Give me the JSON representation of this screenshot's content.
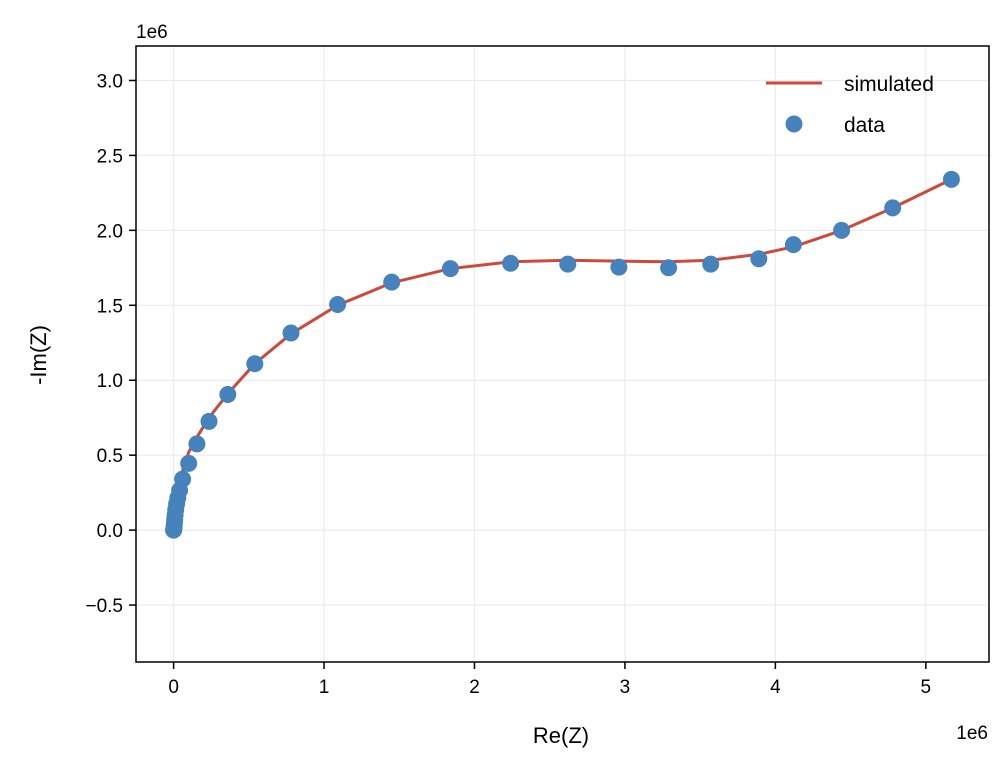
{
  "chart_data": {
    "type": "scatter",
    "title": "",
    "xlabel": "Re(Z)",
    "ylabel": "-Im(Z)",
    "x_offset_label": "1e6",
    "y_offset_label": "1e6",
    "xlim": [
      -250000,
      5420000
    ],
    "ylim": [
      -880000,
      3230000
    ],
    "x_ticks": [
      0,
      1000000,
      2000000,
      3000000,
      4000000,
      5000000
    ],
    "x_tick_labels": [
      "0",
      "1",
      "2",
      "3",
      "4",
      "5"
    ],
    "y_ticks": [
      -500000,
      0,
      500000,
      1000000,
      1500000,
      2000000,
      2500000,
      3000000
    ],
    "y_tick_labels": [
      "−0.5",
      "0.0",
      "0.5",
      "1.0",
      "1.5",
      "2.0",
      "2.5",
      "3.0"
    ],
    "grid": true,
    "legend_position": "top-right",
    "series": [
      {
        "name": "simulated",
        "kind": "line",
        "color": "#cc4a3c",
        "x": [
          0,
          1000,
          3000,
          6000,
          10000,
          15000,
          20000,
          30000,
          45000,
          65000,
          100000,
          155000,
          235000,
          360000,
          540000,
          780000,
          1090000,
          1450000,
          1840000,
          2240000,
          2620000,
          2960000,
          3290000,
          3570000,
          3890000,
          4120000,
          4440000,
          4780000,
          5170000
        ],
        "y": [
          0,
          15000,
          35000,
          70000,
          110000,
          150000,
          185000,
          245000,
          330000,
          420000,
          520000,
          620000,
          750000,
          910000,
          1110000,
          1310000,
          1500000,
          1650000,
          1745000,
          1790000,
          1800000,
          1795000,
          1790000,
          1800000,
          1840000,
          1890000,
          2000000,
          2150000,
          2340000
        ]
      },
      {
        "name": "data",
        "kind": "marker",
        "color": "#4682bc",
        "x": [
          0,
          1000,
          2000,
          3000,
          5000,
          7000,
          10000,
          14000,
          20000,
          28000,
          40000,
          60000,
          100000,
          155000,
          235000,
          360000,
          540000,
          780000,
          1090000,
          1450000,
          1840000,
          2240000,
          2620000,
          2960000,
          3290000,
          3570000,
          3890000,
          4120000,
          4440000,
          4780000,
          5170000
        ],
        "y": [
          0,
          5000,
          12000,
          25000,
          45000,
          70000,
          100000,
          135000,
          175000,
          215000,
          265000,
          340000,
          445000,
          575000,
          725000,
          905000,
          1110000,
          1315000,
          1505000,
          1655000,
          1745000,
          1780000,
          1775000,
          1755000,
          1750000,
          1775000,
          1810000,
          1905000,
          2000000,
          2150000,
          2340000
        ]
      }
    ]
  }
}
